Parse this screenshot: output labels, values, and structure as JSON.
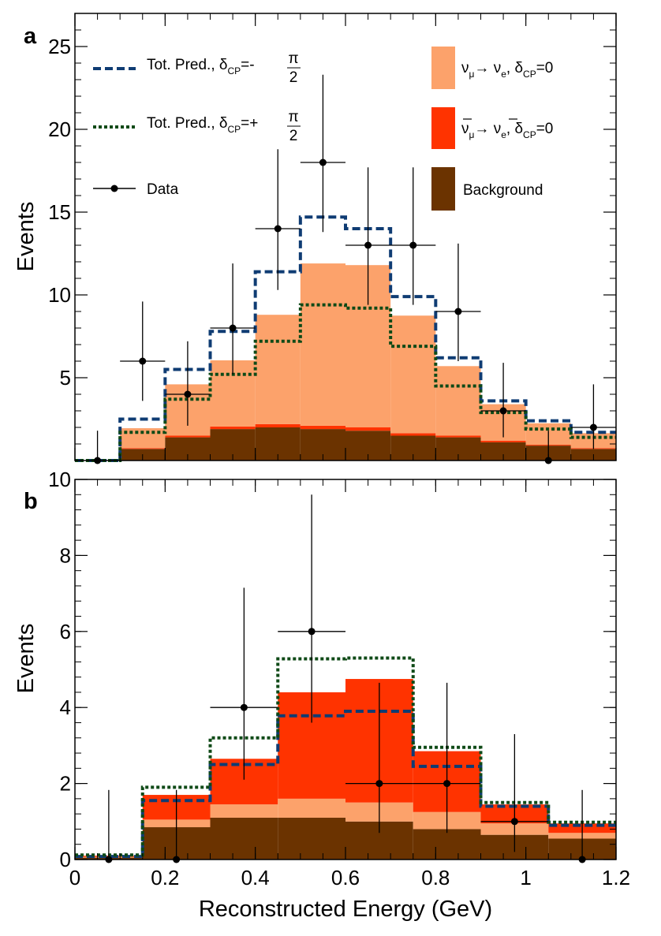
{
  "colors": {
    "nue": "#FCA26B",
    "nuebar": "#FF3300",
    "background": "#6B3300",
    "pred_minus": "#0F3C73",
    "pred_plus": "#0F4A17",
    "data": "#000000"
  },
  "xaxis": {
    "title": "Reconstructed Energy (GeV)",
    "range": [
      0,
      1.2
    ],
    "ticks": [
      {
        "v": 0,
        "label": "0"
      },
      {
        "v": 0.2,
        "label": "0.2"
      },
      {
        "v": 0.4,
        "label": "0.4"
      },
      {
        "v": 0.6,
        "label": "0.6"
      },
      {
        "v": 0.8,
        "label": "0.8"
      },
      {
        "v": 1.0,
        "label": "1"
      },
      {
        "v": 1.2,
        "label": "1.2"
      }
    ]
  },
  "legend": {
    "pred_minus": {
      "text": "Tot. Pred., ",
      "delta": "δ",
      "sub": "CP",
      "rest": "=-",
      "num": "π",
      "den": "2"
    },
    "pred_plus": {
      "text": "Tot. Pred., ",
      "delta": "δ",
      "sub": "CP",
      "rest": "=+",
      "num": "π",
      "den": "2"
    },
    "data": {
      "text": "Data"
    },
    "nue": {
      "nu1": "ν",
      "sub1": "μ",
      "arrow": "→ ",
      "nu2": "ν",
      "sub2": "e",
      "comma": ", ",
      "delta": "δ",
      "sub3": "CP",
      "rest": "=0"
    },
    "nuebar": {
      "nu1": "ν",
      "sub1": "μ",
      "arrow": "→ ",
      "nu2": "ν",
      "sub2": "e",
      "comma": ", ",
      "delta": "δ",
      "sub3": "CP",
      "rest": "=0"
    },
    "background": {
      "text": "Background"
    }
  },
  "chart_data": [
    {
      "panel": "a",
      "type": "bar",
      "ylabel": "Events",
      "ylim": [
        0,
        27
      ],
      "yticks": [
        {
          "v": 5,
          "label": "5"
        },
        {
          "v": 10,
          "label": "10"
        },
        {
          "v": 15,
          "label": "15"
        },
        {
          "v": 20,
          "label": "20"
        },
        {
          "v": 25,
          "label": "25"
        }
      ],
      "bin_edges": [
        0,
        0.1,
        0.2,
        0.3,
        0.4,
        0.5,
        0.6,
        0.7,
        0.8,
        0.9,
        1.0,
        1.1,
        1.2
      ],
      "stacked_series": [
        {
          "name": "Background",
          "values": [
            0,
            0.7,
            1.4,
            1.9,
            2.0,
            1.9,
            1.8,
            1.5,
            1.4,
            1.1,
            0.9,
            0.7
          ]
        },
        {
          "name": "ν̄μ → ν̄e, δCP=0",
          "values": [
            0,
            0.05,
            0.1,
            0.15,
            0.2,
            0.2,
            0.2,
            0.15,
            0.1,
            0.1,
            0.05,
            0.05
          ]
        },
        {
          "name": "νμ → νe, δCP=0",
          "values": [
            0,
            1.2,
            3.1,
            4.0,
            6.6,
            9.8,
            9.8,
            7.1,
            4.2,
            2.2,
            1.3,
            0.9
          ]
        }
      ],
      "step_series": [
        {
          "name": "Tot. Pred., δCP=-π/2",
          "values": [
            0,
            2.5,
            5.5,
            7.8,
            11.4,
            14.7,
            14.0,
            9.9,
            6.2,
            3.6,
            2.4,
            1.7
          ]
        },
        {
          "name": "Tot. Pred., δCP=+π/2",
          "values": [
            0,
            1.7,
            3.7,
            5.2,
            7.2,
            9.4,
            9.2,
            6.9,
            4.5,
            2.9,
            1.9,
            1.4
          ]
        }
      ],
      "data_points": [
        {
          "x": 0.05,
          "y": 0,
          "yerr_low": 0,
          "yerr_high": 1.8
        },
        {
          "x": 0.15,
          "y": 6,
          "xerr": 0.05,
          "yerr_low": 2.4,
          "yerr_high": 3.6
        },
        {
          "x": 0.25,
          "y": 4,
          "xerr": 0.05,
          "yerr_low": 1.9,
          "yerr_high": 3.2
        },
        {
          "x": 0.35,
          "y": 8,
          "xerr": 0.05,
          "yerr_low": 2.8,
          "yerr_high": 3.9
        },
        {
          "x": 0.45,
          "y": 14,
          "xerr": 0.05,
          "yerr_low": 3.7,
          "yerr_high": 4.8
        },
        {
          "x": 0.55,
          "y": 18,
          "xerr": 0.05,
          "yerr_low": 4.2,
          "yerr_high": 5.3
        },
        {
          "x": 0.65,
          "y": 13,
          "xerr": 0.05,
          "yerr_low": 3.6,
          "yerr_high": 4.7
        },
        {
          "x": 0.75,
          "y": 13,
          "xerr": 0.05,
          "yerr_low": 3.6,
          "yerr_high": 4.7
        },
        {
          "x": 0.85,
          "y": 9,
          "xerr": 0.05,
          "yerr_low": 3.0,
          "yerr_high": 4.1
        },
        {
          "x": 0.95,
          "y": 3,
          "xerr": 0.05,
          "yerr_low": 1.6,
          "yerr_high": 2.9
        },
        {
          "x": 1.05,
          "y": 0,
          "yerr_low": 0,
          "yerr_high": 1.8
        },
        {
          "x": 1.15,
          "y": 2,
          "xerr": 0.05,
          "yerr_low": 1.3,
          "yerr_high": 2.6
        }
      ]
    },
    {
      "panel": "b",
      "type": "bar",
      "xlabel": "Reconstructed Energy (GeV)",
      "ylabel": "Events",
      "ylim": [
        0,
        10
      ],
      "yticks": [
        {
          "v": 0,
          "label": "0"
        },
        {
          "v": 2,
          "label": "2"
        },
        {
          "v": 4,
          "label": "4"
        },
        {
          "v": 6,
          "label": "6"
        },
        {
          "v": 8,
          "label": "8"
        },
        {
          "v": 10,
          "label": "10"
        }
      ],
      "bin_edges": [
        0,
        0.15,
        0.3,
        0.45,
        0.6,
        0.75,
        0.9,
        1.05,
        1.2
      ],
      "stacked_series": [
        {
          "name": "Background",
          "values": [
            0.05,
            0.85,
            1.1,
            1.1,
            1.0,
            0.8,
            0.65,
            0.55
          ]
        },
        {
          "name": "νμ → νe, δCP=0",
          "values": [
            0.02,
            0.2,
            0.35,
            0.5,
            0.5,
            0.45,
            0.3,
            0.15
          ]
        },
        {
          "name": "ν̄μ → ν̄e, δCP=0",
          "values": [
            0.03,
            0.65,
            1.2,
            2.8,
            3.25,
            1.6,
            0.5,
            0.25
          ]
        }
      ],
      "step_series": [
        {
          "name": "Tot. Pred., δCP=-π/2",
          "values": [
            0.08,
            1.55,
            2.5,
            3.78,
            3.9,
            2.45,
            1.4,
            0.9
          ]
        },
        {
          "name": "Tot. Pred., δCP=+π/2",
          "values": [
            0.12,
            1.9,
            3.2,
            5.28,
            5.3,
            2.95,
            1.5,
            0.98
          ]
        }
      ],
      "data_points": [
        {
          "x": 0.075,
          "y": 0,
          "yerr_low": 0,
          "yerr_high": 1.83
        },
        {
          "x": 0.225,
          "y": 0,
          "yerr_low": 0,
          "yerr_high": 1.83
        },
        {
          "x": 0.375,
          "y": 4,
          "xerr": 0.075,
          "yerr_low": 1.9,
          "yerr_high": 3.15
        },
        {
          "x": 0.525,
          "y": 6,
          "xerr": 0.075,
          "yerr_low": 2.4,
          "yerr_high": 3.6
        },
        {
          "x": 0.675,
          "y": 2,
          "xerr": 0.075,
          "yerr_low": 1.3,
          "yerr_high": 2.65
        },
        {
          "x": 0.825,
          "y": 2,
          "xerr": 0.075,
          "yerr_low": 1.3,
          "yerr_high": 2.65
        },
        {
          "x": 0.975,
          "y": 1,
          "xerr": 0.075,
          "yerr_low": 0.8,
          "yerr_high": 2.3
        },
        {
          "x": 1.125,
          "y": 0,
          "yerr_low": 0,
          "yerr_high": 1.83
        }
      ]
    }
  ]
}
